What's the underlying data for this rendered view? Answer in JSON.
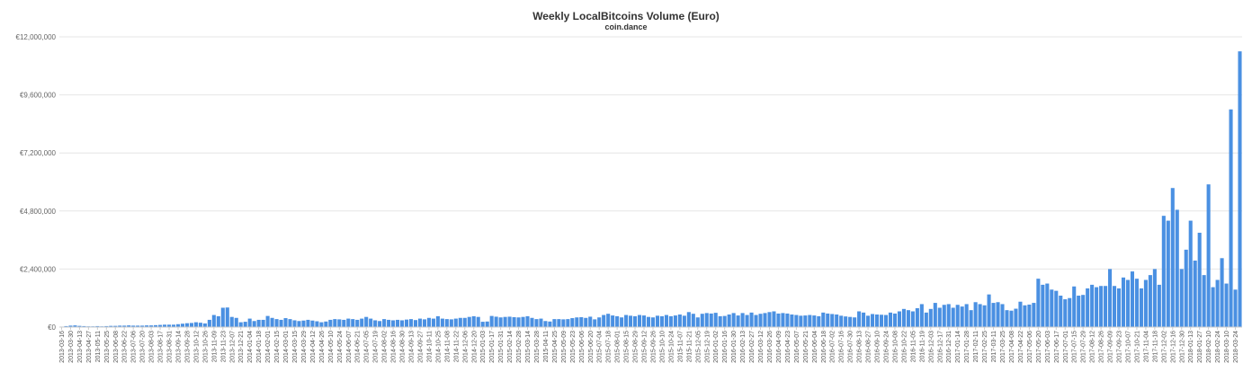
{
  "title": "Weekly LocalBitcoins Volume (Euro)",
  "subtitle": "coin.dance",
  "colors": {
    "bar": "#4a90e2",
    "grid": "#e6e6e6",
    "axis": "#cccccc"
  },
  "chart_data": {
    "type": "bar",
    "title": "Weekly LocalBitcoins Volume (Euro)",
    "subtitle": "coin.dance",
    "xlabel": "",
    "ylabel": "",
    "ylim": [
      0,
      12000000
    ],
    "yticks": [
      0,
      2400000,
      4800000,
      7200000,
      9600000,
      12000000
    ],
    "ytick_labels": [
      "€0",
      "€2,400,000",
      "€4,800,000",
      "€7,200,000",
      "€9,600,000",
      "€12,000,000"
    ],
    "grid": true,
    "legend": "none",
    "start_date": "2013-03-16",
    "x_tick_labels": [
      "2013-03-16",
      "2013-03-30",
      "2013-04-13",
      "2013-04-27",
      "2013-05-11",
      "2013-05-25",
      "2013-06-08",
      "2013-06-22",
      "2013-07-06",
      "2013-07-20",
      "2013-08-03",
      "2013-08-17",
      "2013-08-31",
      "2013-09-14",
      "2013-09-28",
      "2013-10-12",
      "2013-10-26",
      "2013-11-09",
      "2013-11-23",
      "2013-12-07",
      "2013-12-21",
      "2014-01-04",
      "2014-01-18",
      "2014-02-01",
      "2014-02-15",
      "2014-03-01",
      "2014-03-15",
      "2014-03-29",
      "2014-04-12",
      "2014-04-26",
      "2014-05-10",
      "2014-05-24",
      "2014-06-07",
      "2014-06-21",
      "2014-07-05",
      "2014-07-19",
      "2014-08-02",
      "2014-08-16",
      "2014-08-30",
      "2014-09-13",
      "2014-09-27",
      "2014-10-11",
      "2014-10-25",
      "2014-11-08",
      "2014-11-22",
      "2014-12-06",
      "2014-12-20",
      "2015-01-03",
      "2015-01-17",
      "2015-01-31",
      "2015-02-14",
      "2015-02-28",
      "2015-03-14",
      "2015-03-28",
      "2015-04-11",
      "2015-04-25",
      "2015-05-09",
      "2015-05-23",
      "2015-06-06",
      "2015-06-20",
      "2015-07-04",
      "2015-07-18",
      "2015-08-01",
      "2015-08-15",
      "2015-08-29",
      "2015-09-12",
      "2015-09-26",
      "2015-10-10",
      "2015-10-24",
      "2015-11-07",
      "2015-11-21",
      "2015-12-05",
      "2015-12-19",
      "2016-01-02",
      "2016-01-16",
      "2016-01-30",
      "2016-02-13",
      "2016-02-27",
      "2016-03-12",
      "2016-03-26",
      "2016-04-09",
      "2016-04-23",
      "2016-05-07",
      "2016-05-21",
      "2016-06-04",
      "2016-06-18",
      "2016-07-02",
      "2016-07-16",
      "2016-07-30",
      "2016-08-13",
      "2016-08-27",
      "2016-09-10",
      "2016-09-24",
      "2016-10-08",
      "2016-10-22",
      "2016-11-05",
      "2016-11-19",
      "2016-12-03",
      "2016-12-17",
      "2016-12-31",
      "2017-01-14",
      "2017-01-28",
      "2017-02-11",
      "2017-02-25",
      "2017-03-11",
      "2017-03-25",
      "2017-04-08",
      "2017-04-22",
      "2017-05-06",
      "2017-05-20",
      "2017-06-03",
      "2017-06-17",
      "2017-07-01",
      "2017-07-15",
      "2017-07-29",
      "2017-08-12",
      "2017-08-26",
      "2017-09-09",
      "2017-09-23",
      "2017-10-07",
      "2017-10-21",
      "2017-11-04",
      "2017-11-18",
      "2017-12-02",
      "2017-12-16",
      "2017-12-30",
      "2018-01-13",
      "2018-01-27",
      "2018-02-10",
      "2018-02-24",
      "2018-03-10",
      "2018-03-24"
    ],
    "values": [
      20000,
      40000,
      60000,
      70000,
      50000,
      40000,
      30000,
      30000,
      40000,
      30000,
      40000,
      50000,
      50000,
      60000,
      60000,
      70000,
      60000,
      60000,
      60000,
      70000,
      70000,
      80000,
      90000,
      100000,
      100000,
      100000,
      120000,
      140000,
      160000,
      170000,
      200000,
      180000,
      150000,
      300000,
      500000,
      450000,
      800000,
      810000,
      420000,
      380000,
      200000,
      220000,
      350000,
      250000,
      300000,
      300000,
      460000,
      380000,
      330000,
      300000,
      370000,
      330000,
      280000,
      250000,
      270000,
      300000,
      270000,
      240000,
      200000,
      230000,
      300000,
      330000,
      320000,
      300000,
      350000,
      330000,
      300000,
      350000,
      420000,
      350000,
      280000,
      250000,
      330000,
      300000,
      280000,
      300000,
      280000,
      310000,
      330000,
      290000,
      350000,
      320000,
      380000,
      350000,
      450000,
      350000,
      330000,
      320000,
      350000,
      380000,
      380000,
      420000,
      450000,
      420000,
      220000,
      230000,
      460000,
      430000,
      400000,
      420000,
      430000,
      410000,
      400000,
      420000,
      450000,
      380000,
      330000,
      350000,
      250000,
      230000,
      330000,
      330000,
      320000,
      330000,
      370000,
      400000,
      410000,
      380000,
      430000,
      320000,
      400000,
      500000,
      550000,
      480000,
      450000,
      400000,
      500000,
      470000,
      450000,
      500000,
      480000,
      420000,
      400000,
      470000,
      450000,
      500000,
      450000,
      480000,
      520000,
      470000,
      620000,
      550000,
      400000,
      550000,
      580000,
      560000,
      590000,
      450000,
      460000,
      520000,
      580000,
      480000,
      580000,
      500000,
      600000,
      500000,
      550000,
      580000,
      620000,
      650000,
      560000,
      580000,
      560000,
      520000,
      500000,
      470000,
      480000,
      500000,
      480000,
      450000,
      600000,
      560000,
      540000,
      520000,
      470000,
      440000,
      420000,
      400000,
      650000,
      600000,
      470000,
      540000,
      520000,
      510000,
      500000,
      600000,
      560000,
      650000,
      750000,
      700000,
      650000,
      780000,
      950000,
      600000,
      750000,
      1000000,
      800000,
      920000,
      950000,
      800000,
      920000,
      850000,
      950000,
      700000,
      1030000,
      950000,
      900000,
      1350000,
      1000000,
      1030000,
      950000,
      700000,
      680000,
      760000,
      1050000,
      900000,
      930000,
      1000000,
      2000000,
      1750000,
      1800000,
      1550000,
      1500000,
      1300000,
      1150000,
      1200000,
      1680000,
      1300000,
      1330000,
      1600000,
      1750000,
      1650000,
      1700000,
      1700000,
      2400000,
      1700000,
      1600000,
      2050000,
      1950000,
      2300000,
      2000000,
      1600000,
      1950000,
      2150000,
      2400000,
      1750000,
      4600000,
      4400000,
      5750000,
      4850000,
      2400000,
      3200000,
      4400000,
      2750000,
      3900000,
      2150000,
      5900000,
      1650000,
      1950000,
      2850000,
      1800000,
      9000000,
      1550000,
      11400000
    ]
  }
}
